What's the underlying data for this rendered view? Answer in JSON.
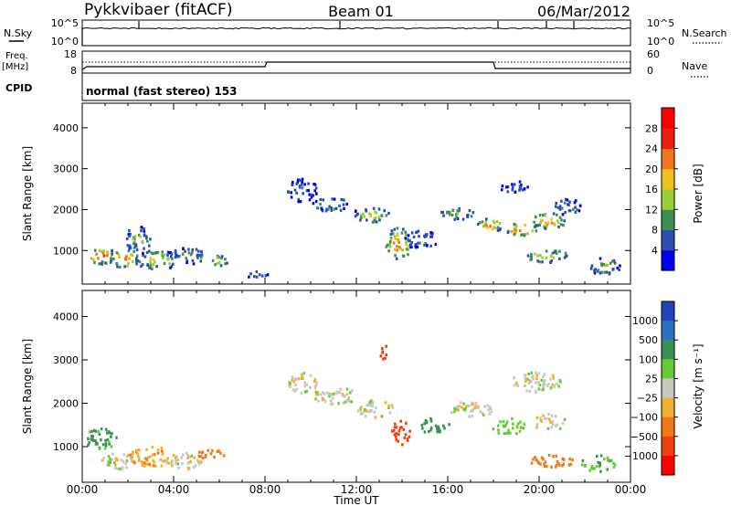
{
  "header": {
    "station": "Pykkvibaer (fitACF)",
    "beam": "Beam 01",
    "date": "06/Mar/2012"
  },
  "top_panels": {
    "nsky_label": "N.Sky",
    "nsearch_label": "N.Search",
    "nsky_ticks": [
      "10^5",
      "10^0"
    ],
    "nsearch_ticks": [
      "10^5",
      "10^0"
    ],
    "freq_label": "Freq.",
    "freq_unit": "[MHz]",
    "freq_ticks": [
      "18",
      "8"
    ],
    "nave_label": "Nave",
    "nave_ticks": [
      "60",
      "0"
    ],
    "cpid_label": "CPID",
    "cpid_text": "normal (fast stereo) 153"
  },
  "axes": {
    "xlabel": "Time UT",
    "ylabel": "Slant Range [km]",
    "xticks": [
      "00:00",
      "04:00",
      "08:00",
      "12:00",
      "16:00",
      "20:00",
      "00:00"
    ],
    "yticks": [
      "1000",
      "2000",
      "3000",
      "4000"
    ]
  },
  "power_colorbar": {
    "label": "Power [dB]",
    "ticks": [
      "4",
      "8",
      "12",
      "16",
      "20",
      "24",
      "28"
    ],
    "colors": [
      "#0000ee",
      "#2a4fb0",
      "#3f8f55",
      "#9ccc3a",
      "#f0c020",
      "#f07818",
      "#e82010",
      "#ff0000"
    ]
  },
  "velocity_colorbar": {
    "label": "Velocity [m s⁻¹]",
    "ticks": [
      "1000",
      "500",
      "100",
      "25",
      "−25",
      "−100",
      "−500",
      "−1000"
    ],
    "colors": [
      "#2244bb",
      "#2e6fc0",
      "#3a8f55",
      "#66cc33",
      "#c8c8c0",
      "#f0b030",
      "#f07818",
      "#f04010",
      "#ff0000"
    ]
  },
  "chart_data": [
    {
      "type": "heatmap",
      "title": "Power",
      "xlabel": "Time UT",
      "ylabel": "Slant Range [km]",
      "xlim_hours": [
        0,
        24
      ],
      "ylim_km": [
        180,
        4600
      ],
      "colorbar_range_db": [
        0,
        32
      ],
      "blobs": [
        {
          "t": 0.8,
          "r": 900,
          "dt": 0.8,
          "dr": 250,
          "v": 27
        },
        {
          "t": 1.8,
          "r": 850,
          "dt": 0.8,
          "dr": 300,
          "v": 24
        },
        {
          "t": 2.4,
          "r": 1300,
          "dt": 0.7,
          "dr": 400,
          "v": 14
        },
        {
          "t": 3.2,
          "r": 800,
          "dt": 1.2,
          "dr": 300,
          "v": 18
        },
        {
          "t": 4.6,
          "r": 900,
          "dt": 1.0,
          "dr": 250,
          "v": 12
        },
        {
          "t": 5.9,
          "r": 780,
          "dt": 0.6,
          "dr": 150,
          "v": 22
        },
        {
          "t": 7.6,
          "r": 450,
          "dt": 0.7,
          "dr": 100,
          "v": 8
        },
        {
          "t": 9.6,
          "r": 2500,
          "dt": 0.8,
          "dr": 350,
          "v": 8
        },
        {
          "t": 10.8,
          "r": 2150,
          "dt": 1.2,
          "dr": 200,
          "v": 12
        },
        {
          "t": 12.6,
          "r": 1900,
          "dt": 1.0,
          "dr": 250,
          "v": 18
        },
        {
          "t": 13.8,
          "r": 1200,
          "dt": 0.7,
          "dr": 500,
          "v": 26
        },
        {
          "t": 14.8,
          "r": 1300,
          "dt": 0.9,
          "dr": 300,
          "v": 10
        },
        {
          "t": 16.4,
          "r": 1950,
          "dt": 1.0,
          "dr": 200,
          "v": 14
        },
        {
          "t": 17.8,
          "r": 1650,
          "dt": 0.8,
          "dr": 200,
          "v": 24
        },
        {
          "t": 19.2,
          "r": 1550,
          "dt": 0.9,
          "dr": 200,
          "v": 28
        },
        {
          "t": 20.4,
          "r": 1750,
          "dt": 0.9,
          "dr": 250,
          "v": 24
        },
        {
          "t": 21.2,
          "r": 2100,
          "dt": 0.8,
          "dr": 250,
          "v": 12
        },
        {
          "t": 18.8,
          "r": 2600,
          "dt": 0.9,
          "dr": 200,
          "v": 8
        },
        {
          "t": 20.3,
          "r": 900,
          "dt": 1.2,
          "dr": 200,
          "v": 18
        },
        {
          "t": 22.8,
          "r": 650,
          "dt": 0.9,
          "dr": 250,
          "v": 14
        }
      ]
    },
    {
      "type": "heatmap",
      "title": "Velocity",
      "xlabel": "Time UT",
      "ylabel": "Slant Range [km]",
      "xlim_hours": [
        0,
        24
      ],
      "ylim_km": [
        180,
        4600
      ],
      "colorbar_range_ms": [
        -1100,
        1100
      ],
      "blobs": [
        {
          "t": 0.8,
          "r": 1200,
          "dt": 0.9,
          "dr": 350,
          "v": 120
        },
        {
          "t": 1.6,
          "r": 700,
          "dt": 1.0,
          "dr": 250,
          "v": 0
        },
        {
          "t": 3.0,
          "r": 800,
          "dt": 1.2,
          "dr": 300,
          "v": -80
        },
        {
          "t": 4.4,
          "r": 700,
          "dt": 1.0,
          "dr": 250,
          "v": 0
        },
        {
          "t": 5.6,
          "r": 850,
          "dt": 0.8,
          "dr": 150,
          "v": -300
        },
        {
          "t": 9.6,
          "r": 2500,
          "dt": 0.8,
          "dr": 350,
          "v": 0
        },
        {
          "t": 11.0,
          "r": 2200,
          "dt": 1.3,
          "dr": 250,
          "v": 0
        },
        {
          "t": 12.8,
          "r": 1900,
          "dt": 1.0,
          "dr": 250,
          "v": 0
        },
        {
          "t": 13.2,
          "r": 3200,
          "dt": 0.3,
          "dr": 200,
          "v": -700
        },
        {
          "t": 13.9,
          "r": 1350,
          "dt": 0.5,
          "dr": 350,
          "v": -900
        },
        {
          "t": 15.4,
          "r": 1500,
          "dt": 0.8,
          "dr": 250,
          "v": 150
        },
        {
          "t": 17.0,
          "r": 1900,
          "dt": 1.2,
          "dr": 250,
          "v": 0
        },
        {
          "t": 18.6,
          "r": 1500,
          "dt": 0.9,
          "dr": 250,
          "v": 60
        },
        {
          "t": 19.8,
          "r": 2500,
          "dt": 1.4,
          "dr": 300,
          "v": 0
        },
        {
          "t": 20.4,
          "r": 1600,
          "dt": 1.0,
          "dr": 250,
          "v": 0
        },
        {
          "t": 20.6,
          "r": 700,
          "dt": 1.3,
          "dr": 200,
          "v": -150
        },
        {
          "t": 22.6,
          "r": 650,
          "dt": 1.0,
          "dr": 250,
          "v": 100
        }
      ]
    }
  ]
}
